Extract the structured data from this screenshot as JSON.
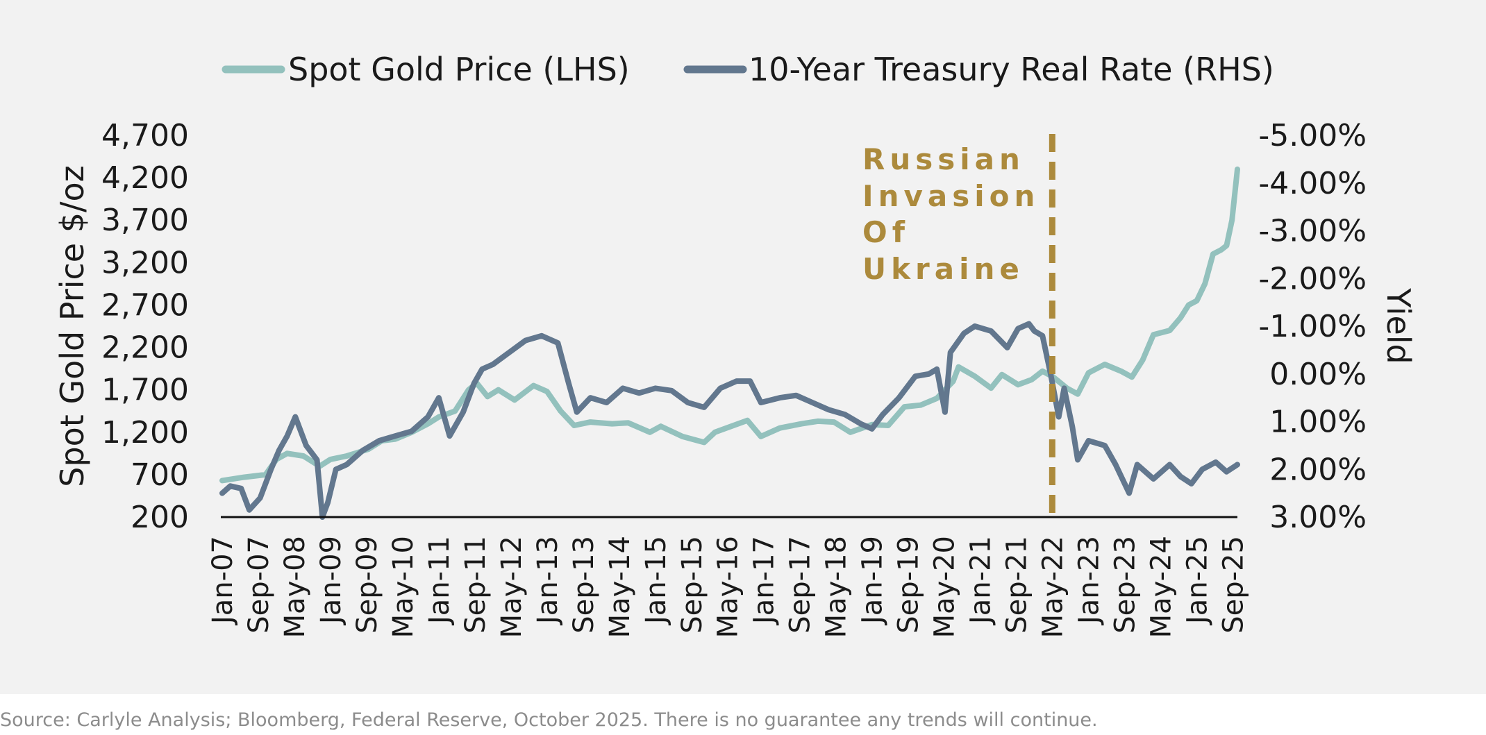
{
  "colors": {
    "gold": "#93c1bd",
    "rate": "#62778e",
    "annotation": "#ac8a3c",
    "axis": "#111111",
    "text": "#1a1a1a",
    "source": "#8c8c8c"
  },
  "chart_data": {
    "type": "line",
    "title": "",
    "legend_position": "top-center",
    "legend": [
      "Spot Gold Price (LHS)",
      "10-Year Treasury Real Rate (RHS)"
    ],
    "ylabel_left": "Spot Gold Price $/oz",
    "ylabel_right": "Yield",
    "y_left": {
      "range": [
        200,
        4700
      ],
      "ticks": [
        200,
        700,
        1200,
        1700,
        2200,
        2700,
        3200,
        3700,
        4200,
        4700
      ],
      "tick_labels": [
        "200",
        "700",
        "1,200",
        "1,700",
        "2,200",
        "2,700",
        "3,200",
        "3,700",
        "4,200",
        "4,700"
      ]
    },
    "y_right": {
      "range": [
        3.0,
        -5.0
      ],
      "inverted": true,
      "ticks": [
        3.0,
        2.0,
        1.0,
        0.0,
        -1.0,
        -2.0,
        -3.0,
        -4.0,
        -5.0
      ],
      "tick_labels": [
        "3.00%",
        "2.00%",
        "1.00%",
        "0.00%",
        "-1.00%",
        "-2.00%",
        "-3.00%",
        "-4.00%",
        "-5.00%"
      ]
    },
    "x_range": [
      2007.0,
      2025.75
    ],
    "x_ticks": [
      {
        "label": "Jan-07",
        "t": 2007.0
      },
      {
        "label": "Sep-07",
        "t": 2007.667
      },
      {
        "label": "May-08",
        "t": 2008.333
      },
      {
        "label": "Jan-09",
        "t": 2009.0
      },
      {
        "label": "Sep-09",
        "t": 2009.667
      },
      {
        "label": "May-10",
        "t": 2010.333
      },
      {
        "label": "Jan-11",
        "t": 2011.0
      },
      {
        "label": "Sep-11",
        "t": 2011.667
      },
      {
        "label": "May-12",
        "t": 2012.333
      },
      {
        "label": "Jan-13",
        "t": 2013.0
      },
      {
        "label": "Sep-13",
        "t": 2013.667
      },
      {
        "label": "May-14",
        "t": 2014.333
      },
      {
        "label": "Jan-15",
        "t": 2015.0
      },
      {
        "label": "Sep-15",
        "t": 2015.667
      },
      {
        "label": "May-16",
        "t": 2016.333
      },
      {
        "label": "Jan-17",
        "t": 2017.0
      },
      {
        "label": "Sep-17",
        "t": 2017.667
      },
      {
        "label": "May-18",
        "t": 2018.333
      },
      {
        "label": "Jan-19",
        "t": 2019.0
      },
      {
        "label": "Sep-19",
        "t": 2019.667
      },
      {
        "label": "May-20",
        "t": 2020.333
      },
      {
        "label": "Jan-21",
        "t": 2021.0
      },
      {
        "label": "Sep-21",
        "t": 2021.667
      },
      {
        "label": "May-22",
        "t": 2022.333
      },
      {
        "label": "Jan-23",
        "t": 2023.0
      },
      {
        "label": "Sep-23",
        "t": 2023.667
      },
      {
        "label": "May-24",
        "t": 2024.333
      },
      {
        "label": "Jan-25",
        "t": 2025.0
      },
      {
        "label": "Sep-25",
        "t": 2025.667
      }
    ],
    "series": [
      {
        "name": "Spot Gold Price (LHS)",
        "axis": "left",
        "points": [
          [
            2007.0,
            630
          ],
          [
            2007.4,
            670
          ],
          [
            2007.8,
            700
          ],
          [
            2008.0,
            880
          ],
          [
            2008.2,
            950
          ],
          [
            2008.5,
            920
          ],
          [
            2008.8,
            800
          ],
          [
            2009.0,
            880
          ],
          [
            2009.3,
            920
          ],
          [
            2009.7,
            1000
          ],
          [
            2009.95,
            1100
          ],
          [
            2010.2,
            1120
          ],
          [
            2010.5,
            1200
          ],
          [
            2010.8,
            1300
          ],
          [
            2011.0,
            1380
          ],
          [
            2011.3,
            1450
          ],
          [
            2011.55,
            1700
          ],
          [
            2011.7,
            1780
          ],
          [
            2011.9,
            1620
          ],
          [
            2012.1,
            1700
          ],
          [
            2012.4,
            1580
          ],
          [
            2012.75,
            1750
          ],
          [
            2013.0,
            1680
          ],
          [
            2013.25,
            1450
          ],
          [
            2013.5,
            1280
          ],
          [
            2013.8,
            1320
          ],
          [
            2014.2,
            1300
          ],
          [
            2014.5,
            1310
          ],
          [
            2014.9,
            1200
          ],
          [
            2015.1,
            1270
          ],
          [
            2015.5,
            1150
          ],
          [
            2015.9,
            1080
          ],
          [
            2016.1,
            1200
          ],
          [
            2016.4,
            1270
          ],
          [
            2016.7,
            1340
          ],
          [
            2016.95,
            1150
          ],
          [
            2017.3,
            1250
          ],
          [
            2017.7,
            1300
          ],
          [
            2018.0,
            1330
          ],
          [
            2018.3,
            1320
          ],
          [
            2018.6,
            1200
          ],
          [
            2019.0,
            1290
          ],
          [
            2019.3,
            1280
          ],
          [
            2019.6,
            1500
          ],
          [
            2019.9,
            1520
          ],
          [
            2020.2,
            1600
          ],
          [
            2020.5,
            1800
          ],
          [
            2020.6,
            1970
          ],
          [
            2020.9,
            1860
          ],
          [
            2021.2,
            1720
          ],
          [
            2021.4,
            1880
          ],
          [
            2021.7,
            1760
          ],
          [
            2021.95,
            1820
          ],
          [
            2022.15,
            1920
          ],
          [
            2022.35,
            1850
          ],
          [
            2022.6,
            1720
          ],
          [
            2022.8,
            1650
          ],
          [
            2023.0,
            1900
          ],
          [
            2023.3,
            2000
          ],
          [
            2023.6,
            1920
          ],
          [
            2023.8,
            1850
          ],
          [
            2024.0,
            2050
          ],
          [
            2024.2,
            2350
          ],
          [
            2024.5,
            2400
          ],
          [
            2024.7,
            2550
          ],
          [
            2024.85,
            2700
          ],
          [
            2025.0,
            2750
          ],
          [
            2025.15,
            2950
          ],
          [
            2025.3,
            3300
          ],
          [
            2025.45,
            3350
          ],
          [
            2025.55,
            3400
          ],
          [
            2025.65,
            3700
          ],
          [
            2025.75,
            4300
          ]
        ]
      },
      {
        "name": "10-Year Treasury Real Rate (RHS)",
        "axis": "right",
        "points": [
          [
            2007.0,
            2.5
          ],
          [
            2007.15,
            2.35
          ],
          [
            2007.35,
            2.4
          ],
          [
            2007.5,
            2.85
          ],
          [
            2007.7,
            2.6
          ],
          [
            2007.9,
            2.0
          ],
          [
            2008.05,
            1.6
          ],
          [
            2008.2,
            1.3
          ],
          [
            2008.35,
            0.9
          ],
          [
            2008.55,
            1.5
          ],
          [
            2008.75,
            1.8
          ],
          [
            2008.85,
            3.0
          ],
          [
            2008.95,
            2.7
          ],
          [
            2009.1,
            2.0
          ],
          [
            2009.3,
            1.9
          ],
          [
            2009.6,
            1.6
          ],
          [
            2009.9,
            1.4
          ],
          [
            2010.2,
            1.3
          ],
          [
            2010.5,
            1.2
          ],
          [
            2010.8,
            0.9
          ],
          [
            2011.0,
            0.5
          ],
          [
            2011.2,
            1.3
          ],
          [
            2011.45,
            0.8
          ],
          [
            2011.65,
            0.2
          ],
          [
            2011.8,
            -0.1
          ],
          [
            2012.0,
            -0.2
          ],
          [
            2012.3,
            -0.45
          ],
          [
            2012.6,
            -0.7
          ],
          [
            2012.9,
            -0.8
          ],
          [
            2013.2,
            -0.65
          ],
          [
            2013.4,
            0.2
          ],
          [
            2013.55,
            0.8
          ],
          [
            2013.8,
            0.5
          ],
          [
            2014.1,
            0.6
          ],
          [
            2014.4,
            0.3
          ],
          [
            2014.7,
            0.4
          ],
          [
            2015.0,
            0.3
          ],
          [
            2015.3,
            0.35
          ],
          [
            2015.6,
            0.6
          ],
          [
            2015.9,
            0.7
          ],
          [
            2016.2,
            0.3
          ],
          [
            2016.5,
            0.15
          ],
          [
            2016.75,
            0.15
          ],
          [
            2016.95,
            0.6
          ],
          [
            2017.3,
            0.5
          ],
          [
            2017.6,
            0.45
          ],
          [
            2017.9,
            0.6
          ],
          [
            2018.2,
            0.75
          ],
          [
            2018.5,
            0.85
          ],
          [
            2018.8,
            1.05
          ],
          [
            2019.0,
            1.15
          ],
          [
            2019.2,
            0.85
          ],
          [
            2019.5,
            0.5
          ],
          [
            2019.8,
            0.05
          ],
          [
            2020.05,
            0.0
          ],
          [
            2020.2,
            -0.1
          ],
          [
            2020.35,
            0.8
          ],
          [
            2020.45,
            -0.45
          ],
          [
            2020.7,
            -0.85
          ],
          [
            2020.9,
            -1.0
          ],
          [
            2021.2,
            -0.9
          ],
          [
            2021.5,
            -0.55
          ],
          [
            2021.7,
            -0.95
          ],
          [
            2021.9,
            -1.05
          ],
          [
            2022.0,
            -0.9
          ],
          [
            2022.15,
            -0.8
          ],
          [
            2022.3,
            0.0
          ],
          [
            2022.45,
            0.9
          ],
          [
            2022.55,
            0.3
          ],
          [
            2022.7,
            1.1
          ],
          [
            2022.8,
            1.8
          ],
          [
            2023.0,
            1.4
          ],
          [
            2023.3,
            1.5
          ],
          [
            2023.5,
            1.9
          ],
          [
            2023.75,
            2.5
          ],
          [
            2023.9,
            1.9
          ],
          [
            2024.2,
            2.2
          ],
          [
            2024.5,
            1.9
          ],
          [
            2024.7,
            2.15
          ],
          [
            2024.9,
            2.3
          ],
          [
            2025.1,
            2.0
          ],
          [
            2025.35,
            1.85
          ],
          [
            2025.55,
            2.05
          ],
          [
            2025.75,
            1.9
          ]
        ]
      }
    ],
    "annotations": [
      {
        "t": 2022.33,
        "style": "dashed-vertical",
        "lines": [
          "Russian",
          "Invasion",
          "Of",
          "Ukraine"
        ]
      }
    ]
  },
  "source_note": "Source: Carlyle Analysis; Bloomberg, Federal Reserve, October 2025. There is no guarantee any trends will continue."
}
